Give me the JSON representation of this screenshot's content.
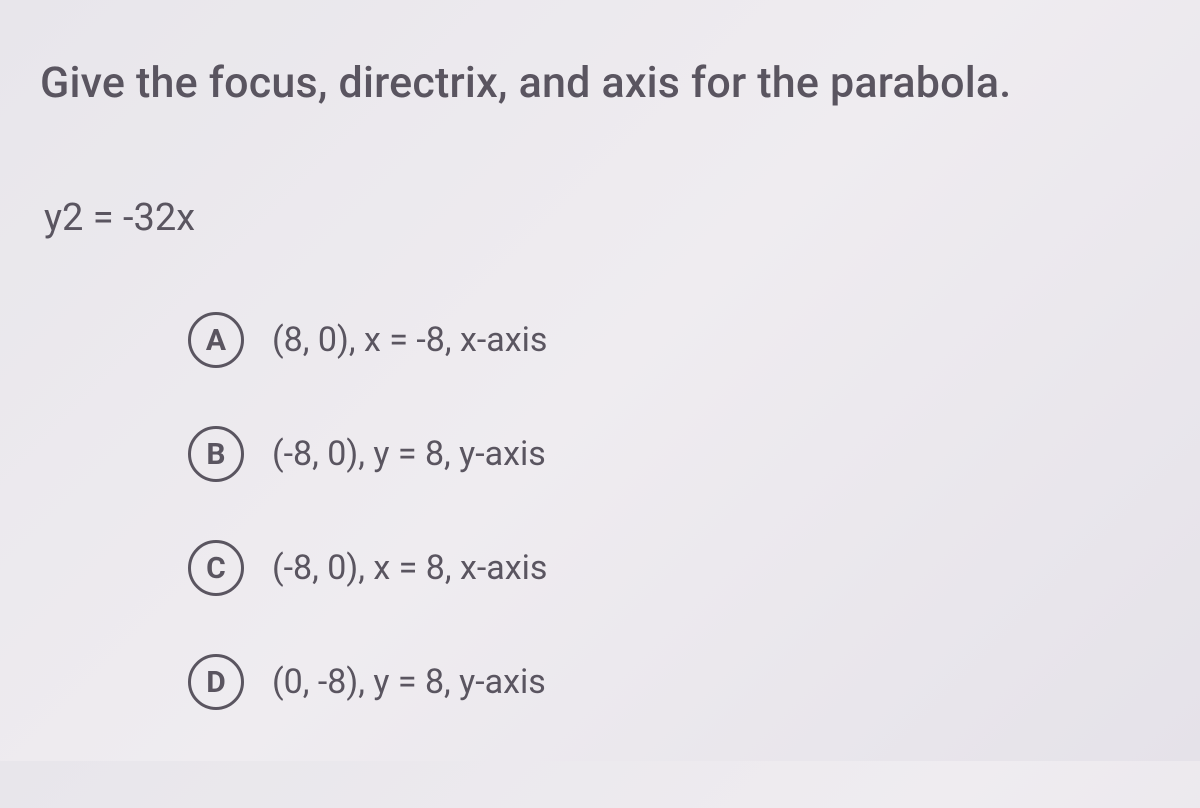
{
  "question": "Give the focus, directrix, and axis for the parabola.",
  "equation": "y2 = -32x",
  "options": [
    {
      "letter": "A",
      "text": "(8, 0), x = -8, x-axis"
    },
    {
      "letter": "B",
      "text": "(-8, 0), y = 8, y-axis"
    },
    {
      "letter": "C",
      "text": "(-8, 0), x = 8, x-axis"
    },
    {
      "letter": "D",
      "text": "(0, -8), y = 8, y-axis"
    }
  ],
  "style": {
    "background_gradient": [
      "#e8e6eb",
      "#efecf0",
      "#e5e2e9"
    ],
    "text_color": "#5a5560",
    "question_fontsize": 43,
    "equation_fontsize": 38,
    "option_fontsize": 34,
    "circle_border_width": 3,
    "circle_size": 56
  }
}
